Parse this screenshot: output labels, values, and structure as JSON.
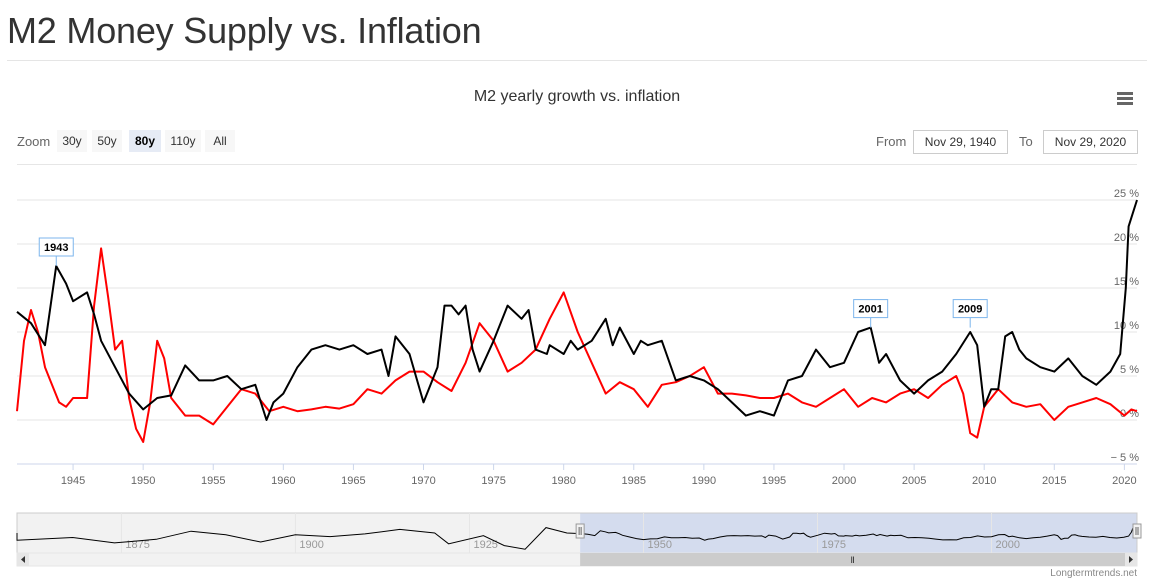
{
  "page": {
    "title": "M2 Money Supply vs. Inflation"
  },
  "toolbar": {
    "zoom_label": "Zoom",
    "zoom_buttons": [
      {
        "label": "30y",
        "active": false
      },
      {
        "label": "50y",
        "active": false
      },
      {
        "label": "80y",
        "active": true
      },
      {
        "label": "110y",
        "active": false
      },
      {
        "label": "All",
        "active": false
      }
    ],
    "from_label": "From",
    "from_value": "Nov 29, 1940",
    "to_label": "To",
    "to_value": "Nov 29, 2020",
    "menu_icon": "hamburger-menu-icon"
  },
  "credits": "Longtermtrends.net",
  "colors": {
    "m2": "#000000",
    "inflation": "#ff0000",
    "navigator_fill": "#ccd6eb",
    "grid": "#e6e6e6"
  },
  "chart_data": {
    "type": "line",
    "title": "M2 yearly growth vs. inflation",
    "xlabel": "",
    "ylabel": "",
    "xlim": [
      1941,
      2020.9
    ],
    "ylim": [
      -5,
      25
    ],
    "x_ticks": [
      1945,
      1950,
      1955,
      1960,
      1965,
      1970,
      1975,
      1980,
      1985,
      1990,
      1995,
      2000,
      2005,
      2010,
      2015,
      2020
    ],
    "y_ticks": [
      {
        "value": 25,
        "label": "25 %"
      },
      {
        "value": 20,
        "label": "20 %"
      },
      {
        "value": 15,
        "label": "15 %"
      },
      {
        "value": 10,
        "label": "10 %"
      },
      {
        "value": 5,
        "label": "5 %"
      },
      {
        "value": 0,
        "label": "0 %"
      },
      {
        "value": -5,
        "label": "− 5 %"
      }
    ],
    "annotations": [
      {
        "label": "1943",
        "x": 1943.8,
        "y": 17.5
      },
      {
        "label": "2001",
        "x": 2001.9,
        "y": 10.5
      },
      {
        "label": "2009",
        "x": 2009.0,
        "y": 10.5
      }
    ],
    "series": [
      {
        "name": "M2 yearly growth",
        "color": "#000000",
        "points": [
          [
            1941,
            12.3
          ],
          [
            1942,
            11
          ],
          [
            1943,
            8.5
          ],
          [
            1943.8,
            17.5
          ],
          [
            1944.5,
            15.5
          ],
          [
            1945,
            13.5
          ],
          [
            1946,
            14.5
          ],
          [
            1946.5,
            12
          ],
          [
            1947,
            9
          ],
          [
            1948,
            6
          ],
          [
            1949,
            3
          ],
          [
            1950,
            1.2
          ],
          [
            1951,
            2.5
          ],
          [
            1952,
            2.8
          ],
          [
            1953,
            6.2
          ],
          [
            1954,
            4.5
          ],
          [
            1955,
            4.5
          ],
          [
            1956,
            5
          ],
          [
            1957,
            3.5
          ],
          [
            1958,
            4
          ],
          [
            1958.8,
            0
          ],
          [
            1959.3,
            2
          ],
          [
            1960,
            3
          ],
          [
            1961,
            6
          ],
          [
            1962,
            8
          ],
          [
            1963,
            8.5
          ],
          [
            1964,
            8
          ],
          [
            1965,
            8.5
          ],
          [
            1966,
            7.5
          ],
          [
            1967,
            8
          ],
          [
            1967.5,
            5
          ],
          [
            1968,
            9.5
          ],
          [
            1969,
            7.5
          ],
          [
            1970,
            2
          ],
          [
            1971,
            6
          ],
          [
            1971.5,
            13
          ],
          [
            1972,
            13
          ],
          [
            1972.5,
            12
          ],
          [
            1973,
            13
          ],
          [
            1973.5,
            8
          ],
          [
            1974,
            5.5
          ],
          [
            1975,
            9
          ],
          [
            1976,
            13
          ],
          [
            1977,
            11.5
          ],
          [
            1977.5,
            12.5
          ],
          [
            1978,
            8
          ],
          [
            1978.8,
            7.5
          ],
          [
            1979,
            8.5
          ],
          [
            1980,
            7.5
          ],
          [
            1980.5,
            9
          ],
          [
            1981,
            8
          ],
          [
            1982,
            9
          ],
          [
            1983,
            11.5
          ],
          [
            1983.5,
            8.5
          ],
          [
            1984,
            10.5
          ],
          [
            1985,
            7.5
          ],
          [
            1985.5,
            9
          ],
          [
            1986,
            8.5
          ],
          [
            1987,
            9
          ],
          [
            1988,
            4.5
          ],
          [
            1989,
            5
          ],
          [
            1990,
            4.5
          ],
          [
            1991,
            3.5
          ],
          [
            1992,
            2
          ],
          [
            1993,
            0.5
          ],
          [
            1994,
            1
          ],
          [
            1995,
            0.5
          ],
          [
            1996,
            4.5
          ],
          [
            1997,
            5
          ],
          [
            1998,
            8
          ],
          [
            1999,
            6
          ],
          [
            2000,
            6.5
          ],
          [
            2001,
            10
          ],
          [
            2001.9,
            10.5
          ],
          [
            2002.5,
            6.5
          ],
          [
            2003,
            7.5
          ],
          [
            2004,
            4.5
          ],
          [
            2005,
            3
          ],
          [
            2006,
            4.5
          ],
          [
            2007,
            5.5
          ],
          [
            2008,
            7.5
          ],
          [
            2009,
            10
          ],
          [
            2009.5,
            8.5
          ],
          [
            2010,
            1.5
          ],
          [
            2010.5,
            3.5
          ],
          [
            2011,
            3.5
          ],
          [
            2011.5,
            9.5
          ],
          [
            2012,
            10
          ],
          [
            2012.5,
            8
          ],
          [
            2013,
            7
          ],
          [
            2014,
            6
          ],
          [
            2015,
            5.5
          ],
          [
            2016,
            7
          ],
          [
            2017,
            5
          ],
          [
            2018,
            4
          ],
          [
            2019,
            5.5
          ],
          [
            2019.7,
            7.5
          ],
          [
            2020.1,
            15
          ],
          [
            2020.3,
            22
          ],
          [
            2020.6,
            23.5
          ],
          [
            2020.9,
            25
          ]
        ]
      },
      {
        "name": "Inflation",
        "color": "#ff0000",
        "points": [
          [
            1941,
            1
          ],
          [
            1941.5,
            9
          ],
          [
            1942,
            12.5
          ],
          [
            1942.5,
            10
          ],
          [
            1943,
            6
          ],
          [
            1943.5,
            4
          ],
          [
            1944,
            2
          ],
          [
            1944.5,
            1.5
          ],
          [
            1945,
            2.5
          ],
          [
            1946,
            2.5
          ],
          [
            1946.5,
            13
          ],
          [
            1947,
            19.5
          ],
          [
            1947.5,
            14
          ],
          [
            1948,
            8
          ],
          [
            1948.5,
            9
          ],
          [
            1949,
            2.5
          ],
          [
            1949.5,
            -1
          ],
          [
            1950,
            -2.5
          ],
          [
            1950.5,
            2
          ],
          [
            1951,
            9
          ],
          [
            1951.5,
            7
          ],
          [
            1952,
            2.5
          ],
          [
            1953,
            0.5
          ],
          [
            1954,
            0.5
          ],
          [
            1955,
            -0.5
          ],
          [
            1956,
            1.5
          ],
          [
            1957,
            3.5
          ],
          [
            1958,
            3
          ],
          [
            1959,
            1
          ],
          [
            1960,
            1.5
          ],
          [
            1961,
            1
          ],
          [
            1962,
            1.2
          ],
          [
            1963,
            1.5
          ],
          [
            1964,
            1.3
          ],
          [
            1965,
            1.8
          ],
          [
            1966,
            3.5
          ],
          [
            1967,
            3
          ],
          [
            1968,
            4.5
          ],
          [
            1969,
            5.5
          ],
          [
            1970,
            5.5
          ],
          [
            1971,
            4.3
          ],
          [
            1972,
            3.3
          ],
          [
            1973,
            6.5
          ],
          [
            1974,
            11
          ],
          [
            1975,
            9
          ],
          [
            1976,
            5.5
          ],
          [
            1977,
            6.5
          ],
          [
            1978,
            8
          ],
          [
            1979,
            11.5
          ],
          [
            1980,
            14.5
          ],
          [
            1981,
            10
          ],
          [
            1982,
            6.5
          ],
          [
            1983,
            3
          ],
          [
            1984,
            4.3
          ],
          [
            1985,
            3.5
          ],
          [
            1986,
            1.5
          ],
          [
            1987,
            4
          ],
          [
            1988,
            4.3
          ],
          [
            1989,
            5
          ],
          [
            1990,
            6
          ],
          [
            1991,
            3
          ],
          [
            1992,
            3
          ],
          [
            1993,
            2.8
          ],
          [
            1994,
            2.5
          ],
          [
            1995,
            2.5
          ],
          [
            1996,
            3
          ],
          [
            1997,
            2
          ],
          [
            1998,
            1.5
          ],
          [
            1999,
            2.5
          ],
          [
            2000,
            3.5
          ],
          [
            2001,
            1.5
          ],
          [
            2002,
            2.5
          ],
          [
            2003,
            2
          ],
          [
            2004,
            3
          ],
          [
            2005,
            3.5
          ],
          [
            2006,
            2.5
          ],
          [
            2007,
            4
          ],
          [
            2008,
            5
          ],
          [
            2008.5,
            3
          ],
          [
            2009,
            -1.5
          ],
          [
            2009.5,
            -2
          ],
          [
            2010,
            1.5
          ],
          [
            2011,
            3.5
          ],
          [
            2012,
            2
          ],
          [
            2013,
            1.5
          ],
          [
            2014,
            1.8
          ],
          [
            2015,
            0
          ],
          [
            2016,
            1.5
          ],
          [
            2017,
            2
          ],
          [
            2018,
            2.5
          ],
          [
            2019,
            1.8
          ],
          [
            2020,
            0.5
          ],
          [
            2020.5,
            1.2
          ],
          [
            2020.9,
            1
          ]
        ]
      }
    ],
    "navigator": {
      "x_ticks": [
        1875,
        1900,
        1925,
        1950,
        1975,
        2000
      ],
      "range": [
        1860,
        2020.9
      ],
      "selected": [
        1940.9,
        2020.9
      ]
    }
  }
}
